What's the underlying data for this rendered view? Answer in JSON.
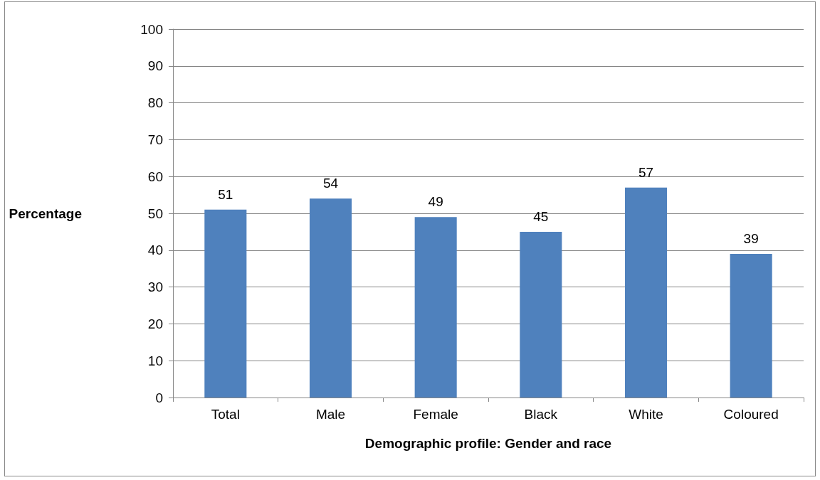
{
  "chart_data": {
    "type": "bar",
    "xlabel": "Demographic profile: Gender and race",
    "ylabel": "Percentage",
    "categories": [
      "Total",
      "Male",
      "Female",
      "Black",
      "White",
      "Coloured"
    ],
    "values": [
      51,
      54,
      49,
      45,
      57,
      39
    ],
    "color": "#4f81bd",
    "ylim": [
      0,
      100
    ],
    "yticks": [
      0,
      10,
      20,
      30,
      40,
      50,
      60,
      70,
      80,
      90,
      100
    ],
    "grid": "y",
    "data_labels": true
  }
}
